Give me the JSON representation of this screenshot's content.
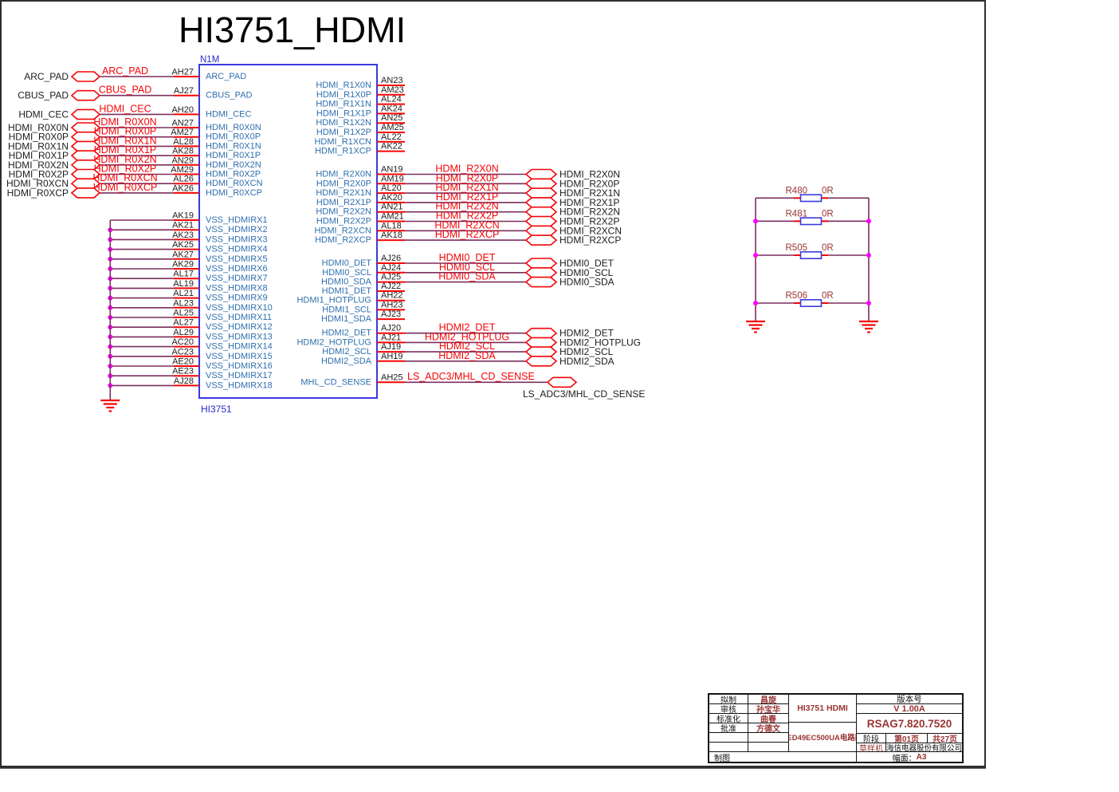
{
  "page_title": "HI3751_HDMI",
  "chip": {
    "refdes": "N1M",
    "part_name": "HI3751",
    "left_groups": [
      {
        "id": "pads",
        "connect": "port",
        "pins": [
          {
            "name": "ARC_PAD",
            "pin": "AH27",
            "net": "ARC_PAD",
            "port": "ARC_PAD"
          },
          {
            "name": "CBUS_PAD",
            "pin": "AJ27",
            "net": "CBUS_PAD",
            "port": "CBUS_PAD"
          },
          {
            "name": "HDMI_CEC",
            "pin": "AH20",
            "net": "HDMI_CEC",
            "port": "HDMI_CEC"
          }
        ]
      },
      {
        "id": "r0x",
        "connect": "port",
        "pins": [
          {
            "name": "HDMI_R0X0N",
            "pin": "AN27",
            "net": "HDMI_R0X0N",
            "port": "HDMI_R0X0N"
          },
          {
            "name": "HDMI_R0X0P",
            "pin": "AM27",
            "net": "HDMI_R0X0P",
            "port": "HDMI_R0X0P"
          },
          {
            "name": "HDMI_R0X1N",
            "pin": "AL28",
            "net": "HDMI_R0X1N",
            "port": "HDMI_R0X1N"
          },
          {
            "name": "HDMI_R0X1P",
            "pin": "AK28",
            "net": "HDMI_R0X1P",
            "port": "HDMI_R0X1P"
          },
          {
            "name": "HDMI_R0X2N",
            "pin": "AN29",
            "net": "HDMI_R0X2N",
            "port": "HDMI_R0X2N"
          },
          {
            "name": "HDMI_R0X2P",
            "pin": "AM29",
            "net": "HDMI_R0X2P",
            "port": "HDMI_R0X2P"
          },
          {
            "name": "HDMI_R0XCN",
            "pin": "AL26",
            "net": "HDMI_R0XCN",
            "port": "HDMI_R0XCN"
          },
          {
            "name": "HDMI_R0XCP",
            "pin": "AK26",
            "net": "HDMI_R0XCP",
            "port": "HDMI_R0XCP"
          }
        ]
      },
      {
        "id": "vss",
        "connect": "ground",
        "pins": [
          {
            "name": "VSS_HDMIRX1",
            "pin": "AK19"
          },
          {
            "name": "VSS_HDMIRX2",
            "pin": "AK21"
          },
          {
            "name": "VSS_HDMIRX3",
            "pin": "AK23"
          },
          {
            "name": "VSS_HDMIRX4",
            "pin": "AK25"
          },
          {
            "name": "VSS_HDMIRX5",
            "pin": "AK27"
          },
          {
            "name": "VSS_HDMIRX6",
            "pin": "AK29"
          },
          {
            "name": "VSS_HDMIRX7",
            "pin": "AL17"
          },
          {
            "name": "VSS_HDMIRX8",
            "pin": "AL19"
          },
          {
            "name": "VSS_HDMIRX9",
            "pin": "AL21"
          },
          {
            "name": "VSS_HDMIRX10",
            "pin": "AL23"
          },
          {
            "name": "VSS_HDMIRX11",
            "pin": "AL25"
          },
          {
            "name": "VSS_HDMIRX12",
            "pin": "AL27"
          },
          {
            "name": "VSS_HDMIRX13",
            "pin": "AL29"
          },
          {
            "name": "VSS_HDMIRX14",
            "pin": "AC20"
          },
          {
            "name": "VSS_HDMIRX15",
            "pin": "AC23"
          },
          {
            "name": "VSS_HDMIRX16",
            "pin": "AE20"
          },
          {
            "name": "VSS_HDMIRX17",
            "pin": "AE23"
          },
          {
            "name": "VSS_HDMIRX18",
            "pin": "AJ28"
          }
        ]
      }
    ],
    "right_groups": [
      {
        "id": "r1x",
        "connect": "none",
        "pins": [
          {
            "name": "HDMI_R1X0N",
            "pin": "AN23"
          },
          {
            "name": "HDMI_R1X0P",
            "pin": "AM23"
          },
          {
            "name": "HDMI_R1X1N",
            "pin": "AL24"
          },
          {
            "name": "HDMI_R1X1P",
            "pin": "AK24"
          },
          {
            "name": "HDMI_R1X2N",
            "pin": "AN25"
          },
          {
            "name": "HDMI_R1X2P",
            "pin": "AM25"
          },
          {
            "name": "HDMI_R1XCN",
            "pin": "AL22"
          },
          {
            "name": "HDMI_R1XCP",
            "pin": "AK22"
          }
        ]
      },
      {
        "id": "r2x",
        "connect": "port",
        "pins": [
          {
            "name": "HDMI_R2X0N",
            "pin": "AN19",
            "net": "HDMI_R2X0N",
            "port": "HDMI_R2X0N"
          },
          {
            "name": "HDMI_R2X0P",
            "pin": "AM19",
            "net": "HDMI_R2X0P",
            "port": "HDMI_R2X0P"
          },
          {
            "name": "HDMI_R2X1N",
            "pin": "AL20",
            "net": "HDMI_R2X1N",
            "port": "HDMI_R2X1N"
          },
          {
            "name": "HDMI_R2X1P",
            "pin": "AK20",
            "net": "HDMI_R2X1P",
            "port": "HDMI_R2X1P"
          },
          {
            "name": "HDMI_R2X2N",
            "pin": "AN21",
            "net": "HDMI_R2X2N",
            "port": "HDMI_R2X2N"
          },
          {
            "name": "HDMI_R2X2P",
            "pin": "AM21",
            "net": "HDMI_R2X2P",
            "port": "HDMI_R2X2P"
          },
          {
            "name": "HDMI_R2XCN",
            "pin": "AL18",
            "net": "HDMI_R2XCN",
            "port": "HDMI_R2XCN"
          },
          {
            "name": "HDMI_R2XCP",
            "pin": "AK18",
            "net": "HDMI_R2XCP",
            "port": "HDMI_R2XCP"
          }
        ]
      },
      {
        "id": "hdmi0",
        "connect": "port",
        "pins": [
          {
            "name": "HDMI0_DET",
            "pin": "AJ26",
            "net": "HDMI0_DET",
            "port": "HDMI0_DET"
          },
          {
            "name": "HDMI0_SCL",
            "pin": "AJ24",
            "net": "HDMI0_SCL",
            "port": "HDMI0_SCL"
          },
          {
            "name": "HDMI0_SDA",
            "pin": "AJ25",
            "net": "HDMI0_SDA",
            "port": "HDMI0_SDA"
          }
        ]
      },
      {
        "id": "hdmi1",
        "connect": "none",
        "pins": [
          {
            "name": "HDMI1_DET",
            "pin": "AJ22"
          },
          {
            "name": "HDMI1_HOTPLUG",
            "pin": "AH22"
          },
          {
            "name": "HDMI1_SCL",
            "pin": "AH23"
          },
          {
            "name": "HDMI1_SDA",
            "pin": "AJ23"
          }
        ]
      },
      {
        "id": "hdmi2",
        "connect": "port",
        "pins": [
          {
            "name": "HDMI2_DET",
            "pin": "AJ20",
            "net": "HDMI2_DET",
            "port": "HDMI2_DET"
          },
          {
            "name": "HDMI2_HOTPLUG",
            "pin": "AJ21",
            "net": "HDMI2_HOTPLUG",
            "port": "HDMI2_HOTPLUG"
          },
          {
            "name": "HDMI2_SCL",
            "pin": "AJ19",
            "net": "HDMI2_SCL",
            "port": "HDMI2_SCL"
          },
          {
            "name": "HDMI2_SDA",
            "pin": "AH19",
            "net": "HDMI2_SDA",
            "port": "HDMI2_SDA"
          }
        ]
      },
      {
        "id": "mhl",
        "connect": "port_below",
        "pins": [
          {
            "name": "MHL_CD_SENSE",
            "pin": "AH25",
            "net": "LS_ADC3/MHL_CD_SENSE",
            "port": "LS_ADC3/MHL_CD_SENSE"
          }
        ]
      }
    ]
  },
  "resistor_network": {
    "resistors": [
      {
        "ref": "R480",
        "value": "0R"
      },
      {
        "ref": "R481",
        "value": "0R"
      },
      {
        "ref": "R505",
        "value": "0R"
      },
      {
        "ref": "R506",
        "value": "0R"
      }
    ]
  },
  "title_block": {
    "approval_rows": [
      {
        "label": "拟制",
        "value": "昌旋"
      },
      {
        "label": "审核",
        "value": "孙宝华"
      },
      {
        "label": "标准化",
        "value": "曲春"
      },
      {
        "label": "批准",
        "value": "方德文"
      },
      {
        "label": "",
        "value": ""
      },
      {
        "label": "",
        "value": ""
      }
    ],
    "drawing_label": "制图",
    "project": "HI3751 HDMI",
    "board": "LED49EC500UA电路图",
    "version_label": "版本号",
    "version": "V 1.00A",
    "doc_number": "RSAG7.820.7520",
    "stage_label": "阶段",
    "page": "第01页",
    "pages_total": "共27页",
    "prototype_label": "草样机",
    "company": "海信电器股份有限公司",
    "sheet_label": "幅面：",
    "sheet_size": "A3"
  },
  "colors": {
    "net_label_red": "#f50406",
    "wire_purple": "#7a2e5e",
    "chip_border_blue": "#3939dd",
    "chip_text_blue": "#2f6fae",
    "refdes_blue": "#2a2ace",
    "pin_number_black": "#1c1c1c",
    "junction_magenta": "#ff00ff",
    "titleblock_dark_red": "#9a3434",
    "frame_black": "#2e2e2e"
  }
}
